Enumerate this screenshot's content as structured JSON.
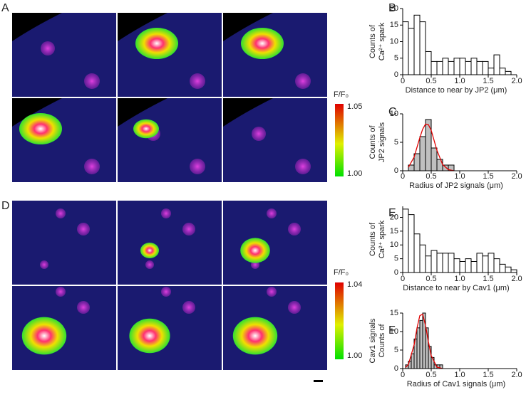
{
  "figure": {
    "panel_labels": [
      "A",
      "B",
      "C",
      "D",
      "E",
      "F"
    ],
    "colorbars": [
      {
        "title": "F/F₀",
        "max_label": "1.05",
        "min_label": "1.00"
      },
      {
        "title": "F/F₀",
        "max_label": "1.04",
        "min_label": "1.00"
      }
    ]
  },
  "chart_data": [
    {
      "type": "histogram",
      "color": "#ffffff",
      "bins": [
        0,
        0.1,
        0.2,
        0.3,
        0.4,
        0.5,
        0.6,
        0.7,
        0.8,
        0.9,
        1.0,
        1.1,
        1.2,
        1.3,
        1.4,
        1.5,
        1.6,
        1.7,
        1.8,
        1.9
      ],
      "values": [
        16,
        14,
        18,
        16,
        7,
        4,
        4,
        5,
        4,
        5,
        5,
        4,
        5,
        4,
        4,
        2,
        6,
        2,
        1
      ],
      "xlim": [
        0,
        2.0
      ],
      "ylim": [
        0,
        20
      ],
      "xticks": [
        0,
        0.5,
        {
          "value": 1.0,
          "label": "1.0"
        },
        1.5,
        {
          "value": 2.0,
          "label": "2.0"
        }
      ],
      "yticks": [
        0,
        5,
        10,
        15,
        20
      ],
      "x_label": "Distance to near by JP2 (μm)",
      "y_label": [
        "Counts of",
        "Ca²⁺ spark"
      ]
    },
    {
      "type": "histogram",
      "color": "#c0c0c0",
      "bins": [
        0.1,
        0.2,
        0.3,
        0.4,
        0.5,
        0.6,
        0.7,
        0.8,
        0.9
      ],
      "values": [
        1,
        3,
        6,
        9,
        4,
        2,
        1,
        1
      ],
      "fit": {
        "color": "#e00000",
        "x": [
          0.1,
          0.2,
          0.3,
          0.35,
          0.4,
          0.45,
          0.5,
          0.6,
          0.7,
          0.8,
          0.9
        ],
        "values": [
          0.6,
          2.4,
          5.8,
          7.3,
          8.2,
          8.1,
          7.1,
          3.6,
          1.1,
          0.2,
          0
        ]
      },
      "xlim": [
        0,
        2.0
      ],
      "ylim": [
        0,
        10
      ],
      "xticks": [
        0,
        0.5,
        {
          "value": 1.0,
          "label": "1.0"
        },
        1.5,
        {
          "value": 2.0,
          "label": "2.0"
        }
      ],
      "yticks": [
        0,
        5,
        10
      ],
      "x_label": "Radius of JP2 signals (μm)",
      "y_label": [
        "Counts of",
        "JP2 signals"
      ]
    },
    {
      "type": "histogram",
      "color": "#ffffff",
      "bins": [
        0,
        0.1,
        0.2,
        0.3,
        0.4,
        0.5,
        0.6,
        0.7,
        0.8,
        0.9,
        1.0,
        1.1,
        1.2,
        1.3,
        1.4,
        1.5,
        1.6,
        1.7,
        1.8,
        1.9,
        2.0
      ],
      "values": [
        23,
        21,
        14,
        10,
        6,
        8,
        7,
        7,
        7,
        5,
        4,
        5,
        4,
        7,
        6,
        7,
        5,
        3,
        2,
        1
      ],
      "xlim": [
        0,
        2.0
      ],
      "ylim": [
        0,
        24
      ],
      "xticks": [
        0,
        0.5,
        {
          "value": 1.0,
          "label": "1.0"
        },
        1.5,
        {
          "value": 2.0,
          "label": "2.0"
        }
      ],
      "yticks": [
        0,
        5,
        10,
        15,
        20
      ],
      "x_label": "Distance to near by Cav1 (μm)",
      "y_label": [
        "Counts of",
        "Ca²⁺ spark"
      ]
    },
    {
      "type": "histogram",
      "color": "#c0c0c0",
      "bins": [
        0.05,
        0.1,
        0.15,
        0.2,
        0.25,
        0.3,
        0.35,
        0.4,
        0.45,
        0.5,
        0.55,
        0.6,
        0.65,
        0.7
      ],
      "values": [
        1,
        2,
        4,
        8,
        11,
        13,
        15,
        11,
        6,
        3,
        1,
        1,
        1
      ],
      "fit": {
        "color": "#e00000",
        "x": [
          0.05,
          0.1,
          0.2,
          0.25,
          0.3,
          0.35,
          0.4,
          0.45,
          0.5,
          0.6,
          0.7
        ],
        "values": [
          0.3,
          1.1,
          6.4,
          10.9,
          14.3,
          14.7,
          11.7,
          7.3,
          3.5,
          0.4,
          0
        ]
      },
      "xlim": [
        0,
        2.0
      ],
      "ylim": [
        0,
        15
      ],
      "xticks": [
        0,
        0.5,
        {
          "value": 1.0,
          "label": "1.0"
        },
        1.5,
        {
          "value": 2.0,
          "label": "2.0"
        }
      ],
      "yticks": [
        0,
        5,
        10,
        15
      ],
      "x_label": "Radius of Cav1 signals (μm)",
      "y_label": [
        "Cav1 signals",
        "Counts of"
      ]
    }
  ]
}
